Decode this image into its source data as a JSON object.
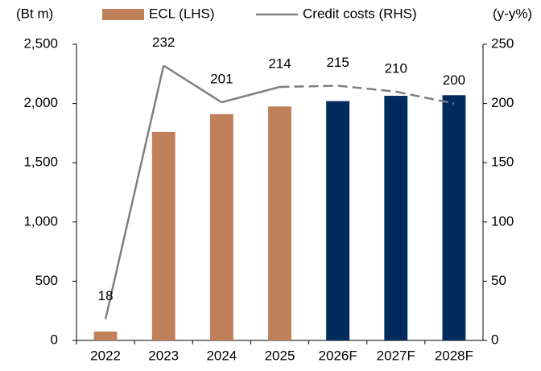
{
  "chart_data": {
    "type": "bar_line",
    "y_label": "(Bt m)",
    "y2_label": "(y-y%)",
    "categories": [
      "2022",
      "2023",
      "2024",
      "2025",
      "2026F",
      "2027F",
      "2028F"
    ],
    "series": [
      {
        "name": "ECL (LHS)",
        "type": "bar",
        "color": "#c0805a",
        "colors": [
          "#c0805a",
          "#c0805a",
          "#c0805a",
          "#c0805a",
          "#002b5c",
          "#002b5c",
          "#002b5c"
        ],
        "values": [
          75,
          1760,
          1910,
          1975,
          2020,
          2065,
          2070
        ]
      },
      {
        "name": "Credit costs (RHS)",
        "type": "line",
        "axis": "y2",
        "color": "#808080",
        "styles": [
          "solid",
          "solid",
          "solid",
          "solid",
          "dashed",
          "dashed",
          "dashed"
        ],
        "values": [
          18,
          232,
          201,
          214,
          215,
          210,
          200
        ]
      }
    ],
    "ylim": [
      0,
      2500
    ],
    "yticks": [
      0,
      500,
      {
        "value": 1000,
        "label": "1,000"
      },
      {
        "value": 1500,
        "label": "1,500"
      },
      {
        "value": 2000,
        "label": "2,000"
      },
      {
        "value": 2500,
        "label": "2,500"
      }
    ],
    "y2lim": [
      0,
      250
    ],
    "y2ticks": [
      0,
      50,
      100,
      150,
      200,
      250
    ],
    "legend": "top"
  }
}
